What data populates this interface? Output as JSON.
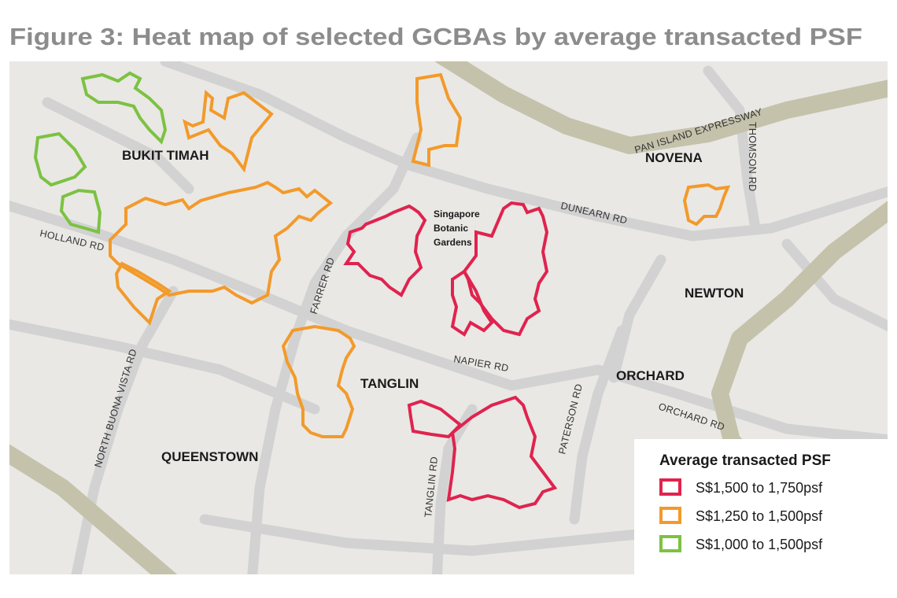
{
  "title": "Figure 3: Heat map of selected GCBAs by average transacted PSF",
  "districts": [
    "BUKIT TIMAH",
    "NOVENA",
    "NEWTON",
    "ORCHARD",
    "TANGLIN",
    "QUEENSTOWN"
  ],
  "roads": [
    "PAN ISLAND EXPRESSWAY",
    "THOMSON RD",
    "DUNEARN RD",
    "HOLLAND RD",
    "FARRER RD",
    "NAPIER RD",
    "NORTH BUONA VISTA RD",
    "PATERSON RD",
    "ORCHARD RD",
    "TANGLIN RD"
  ],
  "landmark": [
    "Singapore",
    "Botanic",
    "Gardens"
  ],
  "legend": {
    "title": "Average transacted PSF",
    "items": [
      {
        "label": "S$1,500 to 1,750psf",
        "color": "#e0234e"
      },
      {
        "label": "S$1,250 to 1,500psf",
        "color": "#f39a2a"
      },
      {
        "label": "S$1,000 to 1,500psf",
        "color": "#7cc242"
      }
    ]
  }
}
